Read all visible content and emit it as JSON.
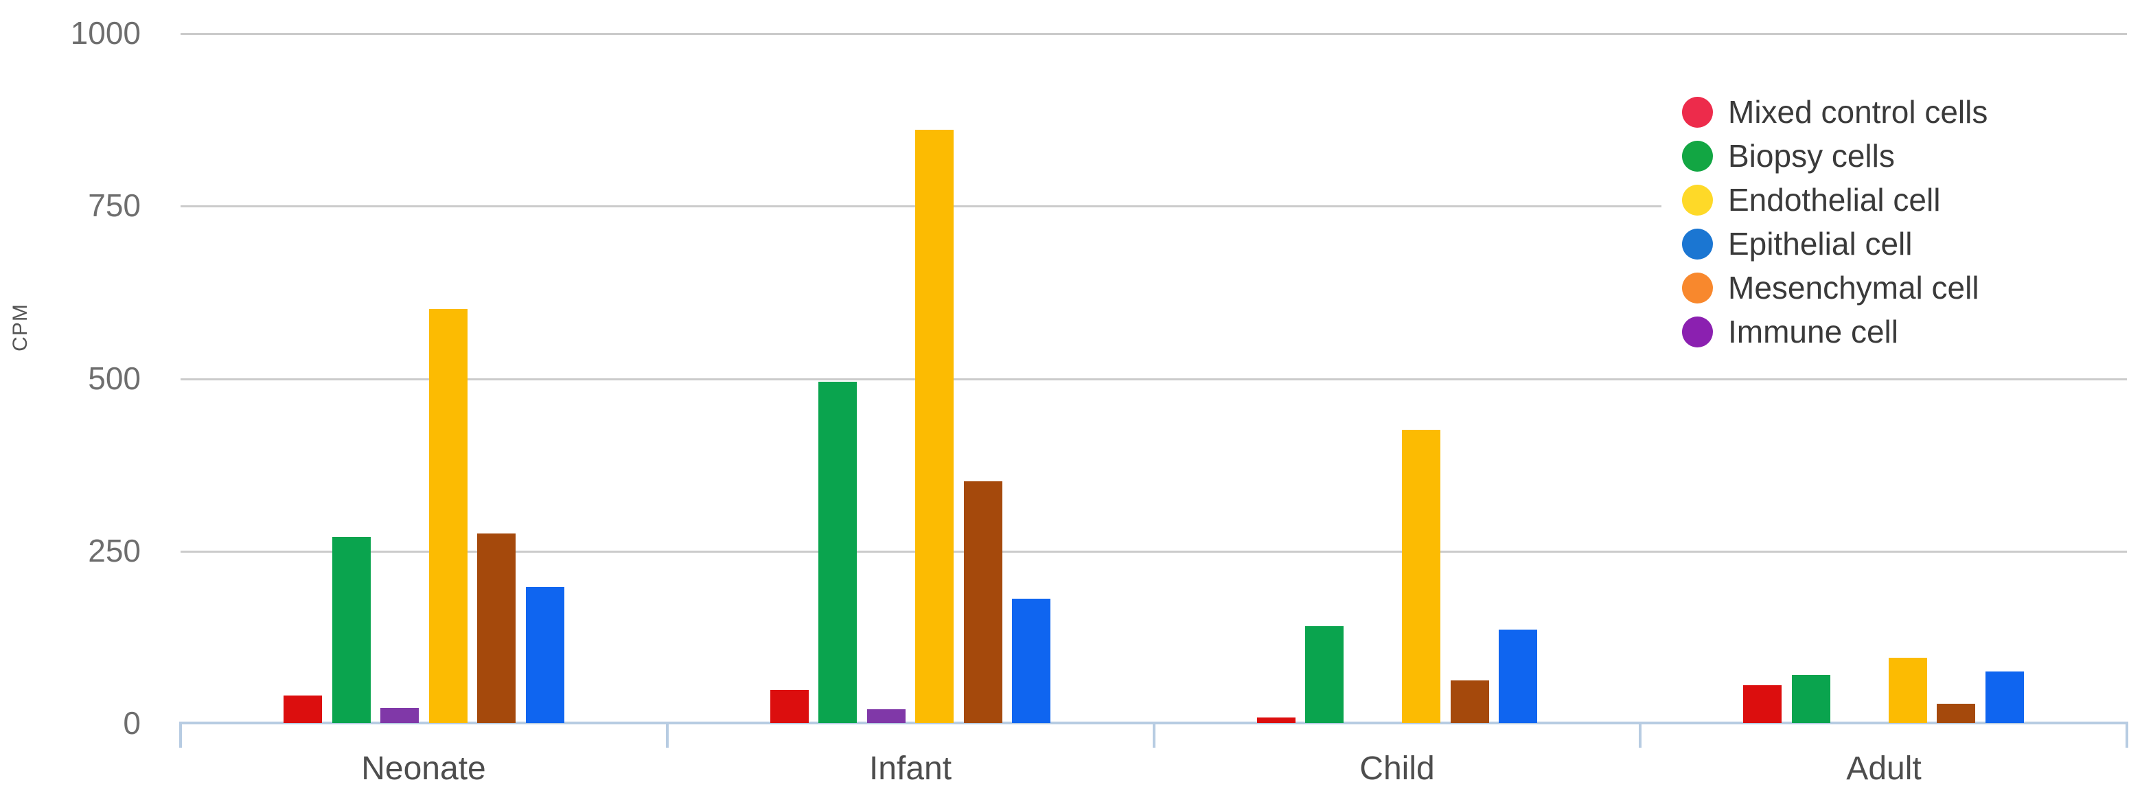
{
  "chart_data": {
    "type": "bar",
    "title": "",
    "ylabel": "CPM",
    "xlabel": "",
    "ylim": [
      0,
      1000
    ],
    "yticks": [
      0,
      250,
      500,
      750,
      1000
    ],
    "ytick_labels": [
      "0",
      "250",
      "500",
      "750",
      "1000"
    ],
    "categories": [
      "Neonate",
      "Infant",
      "Child",
      "Adult"
    ],
    "grid": "horizontal-gridlines-on",
    "legend_position": "top-right",
    "bar_group_order_note": "bars left-to-right in each group",
    "series": [
      {
        "name": "Mixed control cells",
        "bar_color": "#DC0E0E",
        "legend_color": "#ED2B4B",
        "values": [
          40,
          48,
          8,
          55
        ]
      },
      {
        "name": "Biopsy cells",
        "bar_color": "#0AA44E",
        "legend_color": "#12A643",
        "values": [
          270,
          495,
          140,
          70
        ]
      },
      {
        "name": "Immune cell",
        "bar_color": "#8038A8",
        "legend_color": "#8B20B0",
        "values": [
          22,
          20,
          0,
          0
        ]
      },
      {
        "name": "Endothelial cell",
        "bar_color": "#FCBB02",
        "legend_color": "#FED928",
        "values": [
          600,
          860,
          425,
          95
        ]
      },
      {
        "name": "Mesenchymal cell",
        "bar_color": "#A5490C",
        "legend_color": "#F8882D",
        "values": [
          275,
          350,
          62,
          28
        ]
      },
      {
        "name": "Epithelial cell",
        "bar_color": "#0F65F0",
        "legend_color": "#1B76D2",
        "values": [
          197,
          180,
          135,
          75
        ]
      }
    ],
    "legend_order": [
      "Mixed control cells",
      "Biopsy cells",
      "Endothelial cell",
      "Epithelial cell",
      "Mesenchymal cell",
      "Immune cell"
    ],
    "colors": {
      "background": "#FFFFFF",
      "gridline": "#CBCBCB",
      "axis_line": "#B7CCE2",
      "ytick_text": "#6E6E6E",
      "xtick_text": "#4D4D4D",
      "legend_text": "#3A3A3A",
      "ylabel_text": "#555555"
    }
  }
}
